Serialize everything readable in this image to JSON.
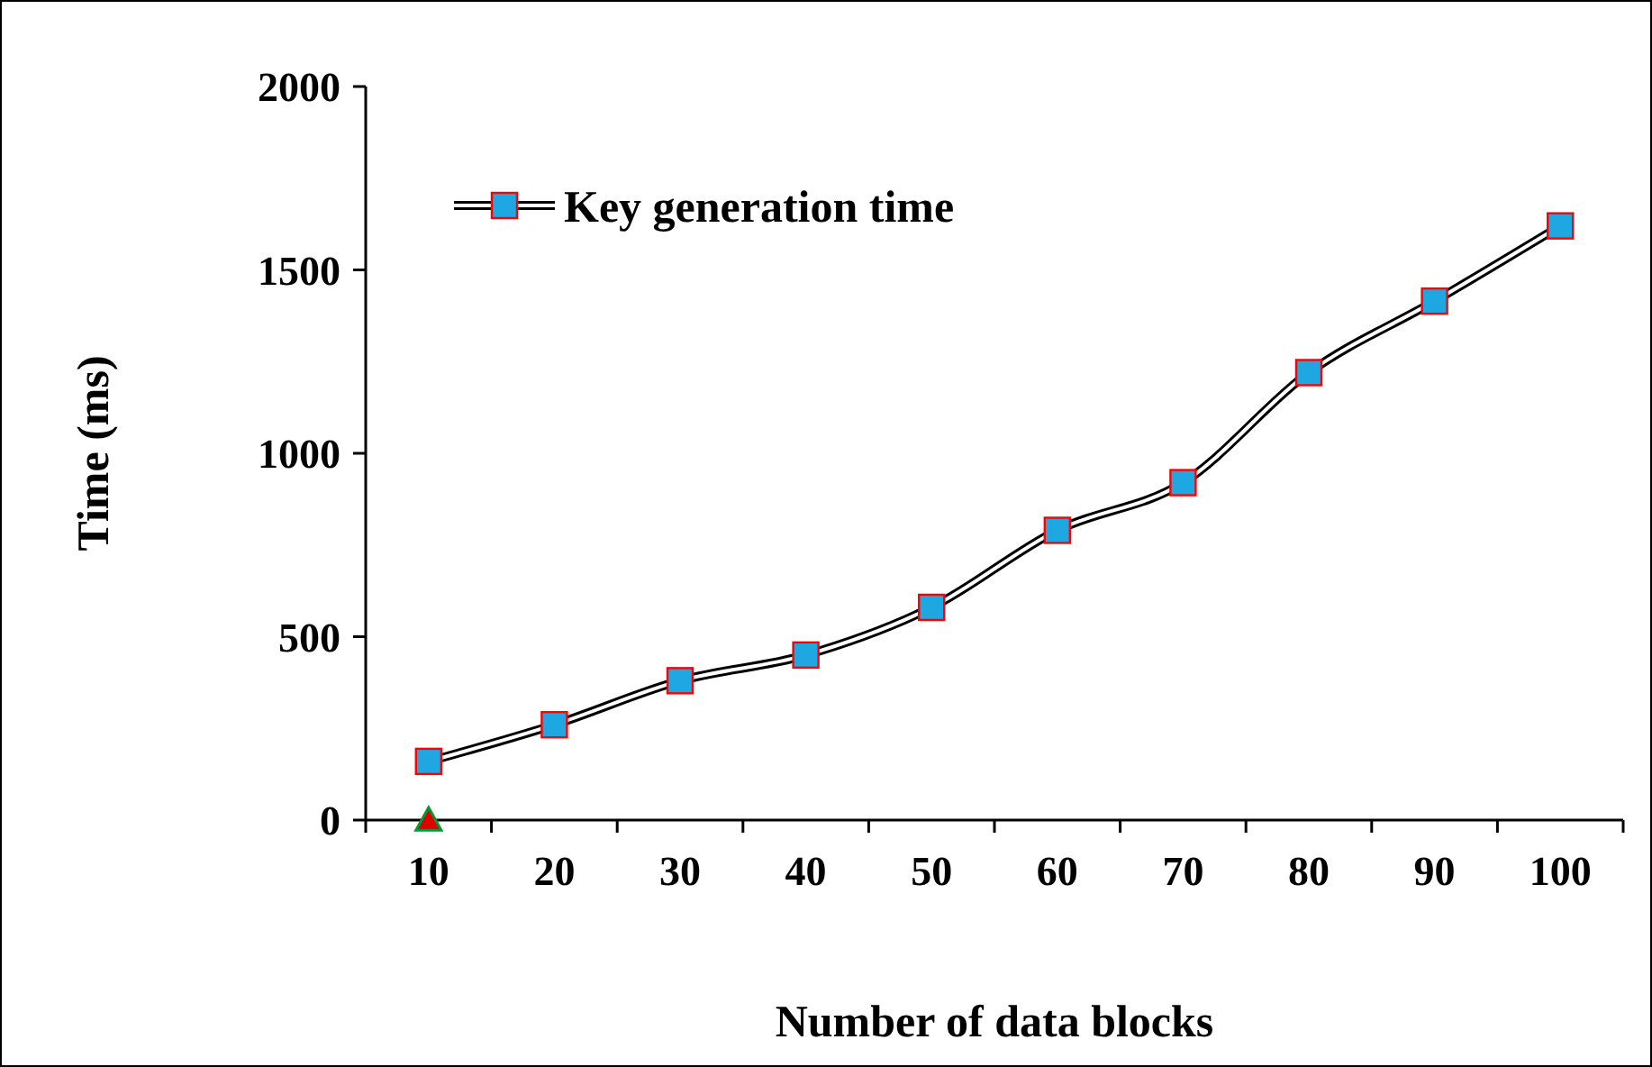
{
  "chart_data": {
    "type": "line",
    "xlabel": "Number of data blocks",
    "ylabel": "Time (ms)",
    "categories": [
      "10",
      "20",
      "30",
      "40",
      "50",
      "60",
      "70",
      "80",
      "90",
      "100"
    ],
    "series": [
      {
        "name": "Key generation time",
        "color": "#1ea7e1",
        "marker": "square",
        "values": [
          160,
          260,
          380,
          450,
          580,
          790,
          920,
          1220,
          1415,
          1620
        ]
      },
      {
        "type": "scatter",
        "color": "#e00000",
        "marker": "triangle",
        "x": [
          "10"
        ],
        "values": [
          0
        ]
      }
    ],
    "ylim": [
      0,
      2000
    ],
    "yticks": [
      0,
      500,
      1000,
      1500,
      2000
    ],
    "grid": false,
    "legend": "top left"
  }
}
